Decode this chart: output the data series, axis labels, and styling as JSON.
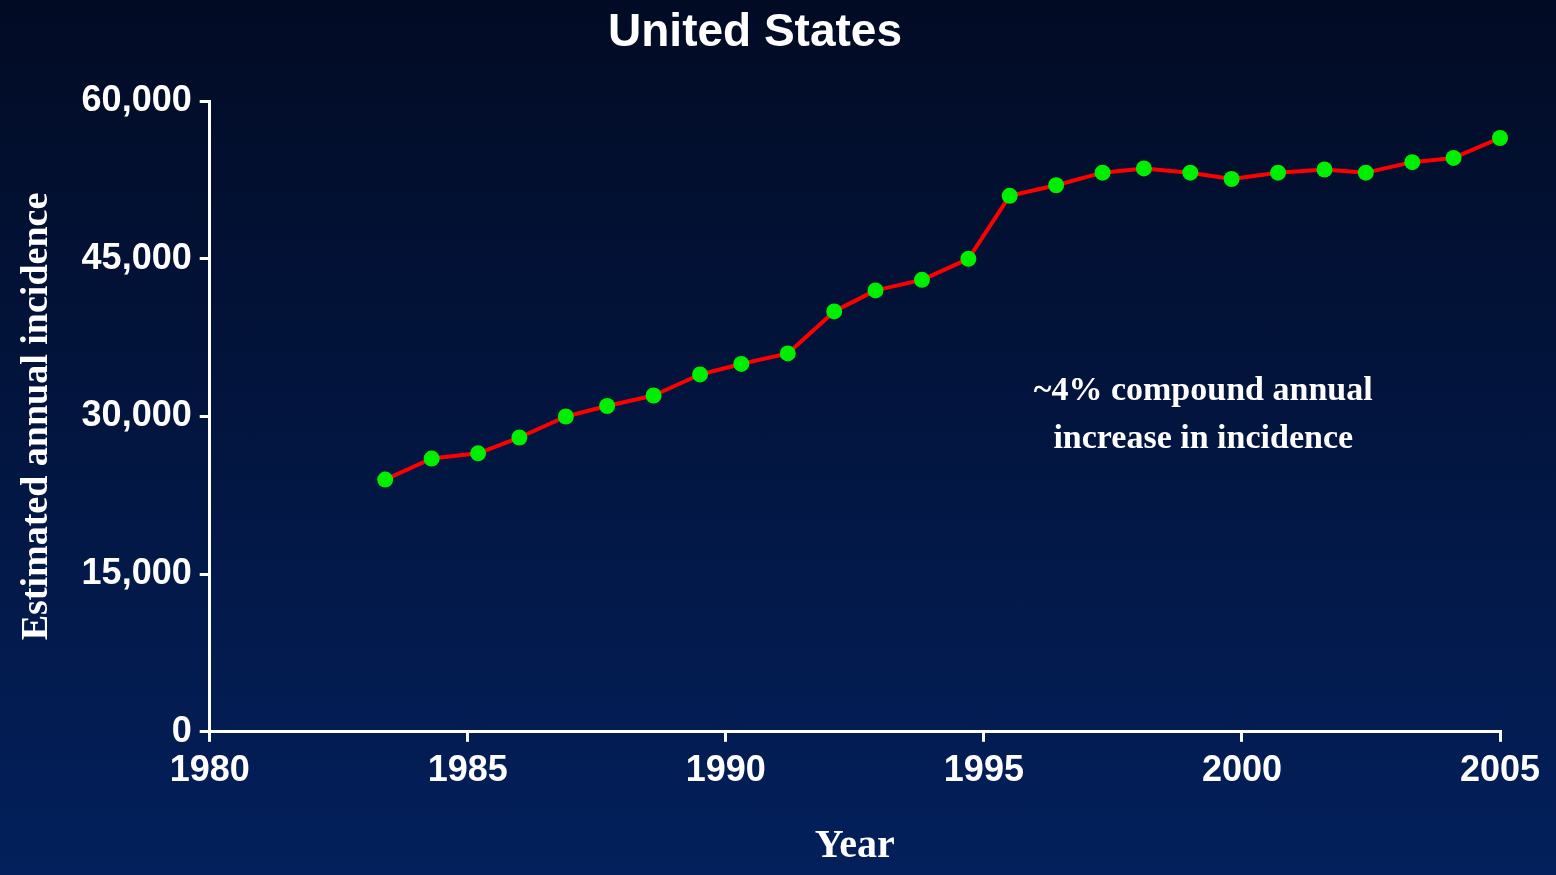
{
  "chart_data": {
    "type": "line",
    "title": "United States",
    "xlabel": "Year",
    "ylabel": "Estimated annual incidence",
    "annotations": [
      "~4% compound annual increase in incidence"
    ],
    "x": [
      1983.4,
      1984.3,
      1985.2,
      1986.0,
      1986.9,
      1987.7,
      1988.6,
      1989.5,
      1990.3,
      1991.2,
      1992.1,
      1992.9,
      1993.8,
      1994.7,
      1995.5,
      1996.4,
      1997.3,
      1998.1,
      1999.0,
      1999.8,
      2000.7,
      2001.6,
      2002.4,
      2003.3,
      2004.1,
      2005.0
    ],
    "series": [
      {
        "color": "#ff0000",
        "colors": [
          "#00ee00",
          "#00ee00",
          "#00ee00",
          "#00ee00",
          "#00ee00",
          "#00ee00",
          "#00ee00",
          "#00ee00",
          "#00ee00",
          "#00ee00",
          "#00ee00",
          "#00ee00",
          "#00ee00",
          "#00ee00",
          "#00ee00",
          "#00ee00",
          "#00ee00",
          "#00ee00",
          "#00ee00",
          "#00ee00",
          "#00ee00",
          "#00ee00",
          "#00ee00",
          "#00ee00",
          "#00ee00",
          "#00ee00"
        ],
        "values": [
          24000,
          26000,
          26500,
          28000,
          30000,
          31000,
          32000,
          34000,
          35000,
          36000,
          40000,
          42000,
          43000,
          45000,
          51000,
          52000,
          53200,
          53600,
          53200,
          52600,
          53200,
          53500,
          53200,
          54200,
          54600,
          56500
        ]
      }
    ],
    "marker": "circle",
    "line_style": "solid",
    "grid": false,
    "legend": false,
    "xlim": [
      1980,
      2005
    ],
    "xticks": [
      1980,
      1985,
      1990,
      1995,
      2000,
      2005
    ],
    "ylim": [
      0,
      60000
    ],
    "yticks": [
      0,
      {
        "value": 15000,
        "label": "15,000"
      },
      {
        "value": 30000,
        "label": "30,000"
      },
      {
        "value": 45000,
        "label": "45,000"
      },
      {
        "value": 60000,
        "label": "60,000"
      }
    ]
  }
}
